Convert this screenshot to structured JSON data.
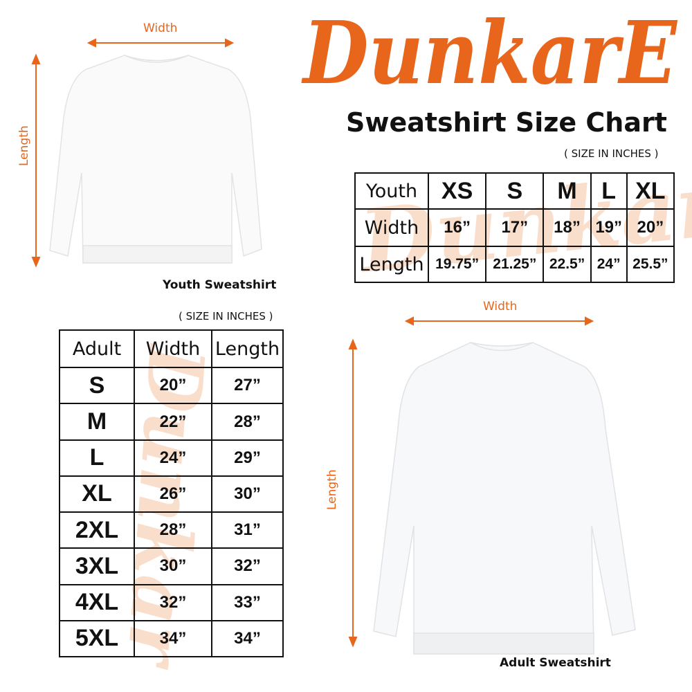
{
  "brand": {
    "logo_text": "DunkarE",
    "color": "#e8661c"
  },
  "title": "Sweatshirt Size Chart",
  "youth": {
    "diagram": {
      "width_label": "Width",
      "length_label": "Length",
      "caption": "Youth Sweatshirt"
    },
    "units_note": "( SIZE IN INCHES )",
    "table": {
      "header": [
        "Youth",
        "XS",
        "S",
        "M",
        "L",
        "XL"
      ],
      "rows": [
        [
          "Width",
          "16”",
          "17”",
          "18”",
          "19”",
          "20”"
        ],
        [
          "Length",
          "19.75”",
          "21.25”",
          "22.5”",
          "24”",
          "25.5”"
        ]
      ]
    }
  },
  "adult": {
    "diagram": {
      "width_label": "Width",
      "length_label": "Length",
      "caption": "Adult Sweatshirt"
    },
    "units_note": "( SIZE IN INCHES )",
    "table": {
      "header": [
        "Adult",
        "Width",
        "Length"
      ],
      "rows": [
        [
          "S",
          "20”",
          "27”"
        ],
        [
          "M",
          "22”",
          "28”"
        ],
        [
          "L",
          "24”",
          "29”"
        ],
        [
          "XL",
          "26”",
          "30”"
        ],
        [
          "2XL",
          "28”",
          "31”"
        ],
        [
          "3XL",
          "30”",
          "32”"
        ],
        [
          "4XL",
          "32”",
          "33”"
        ],
        [
          "5XL",
          "34”",
          "34”"
        ]
      ]
    }
  }
}
